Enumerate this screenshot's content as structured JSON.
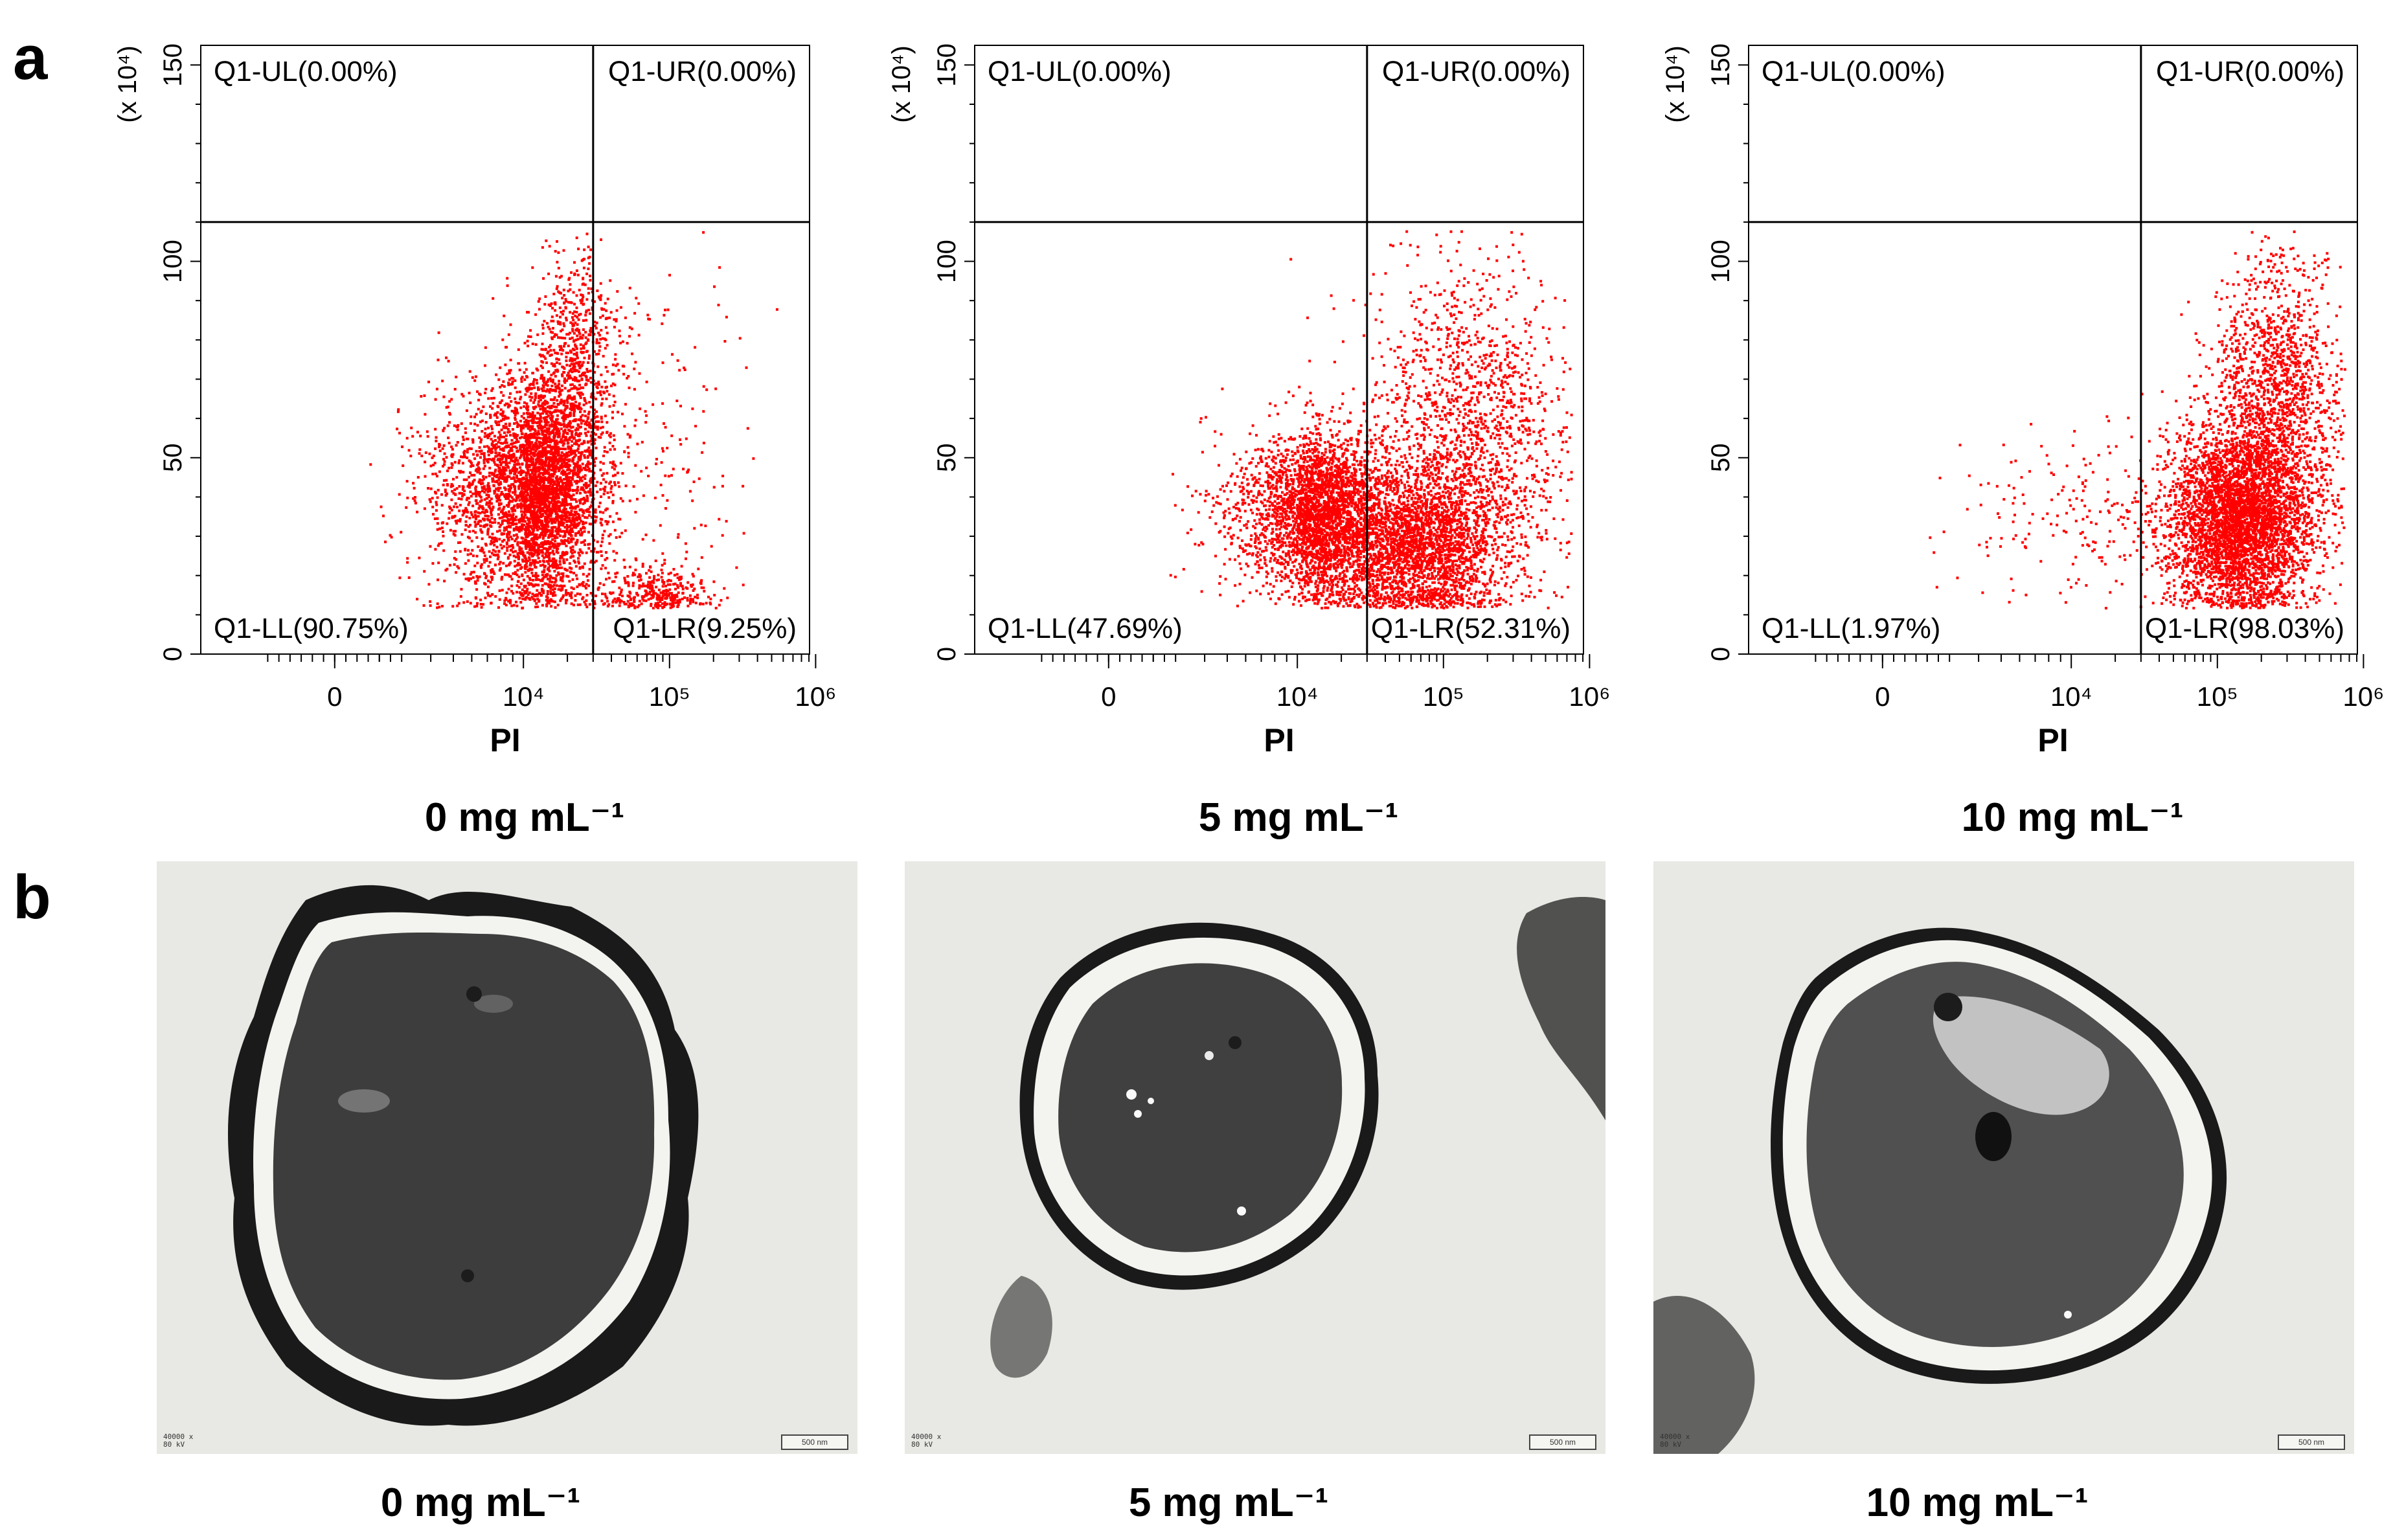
{
  "figure": {
    "panel_a_letter": "a",
    "panel_b_letter": "b",
    "panel_b_conditions": [
      "0 mg mL⁻¹",
      "5 mg mL⁻¹",
      "10 mg mL⁻¹"
    ],
    "tem_scale_label": "500 nm",
    "tem_meta": [
      "40000 x",
      "80 kV"
    ]
  },
  "chart_data": [
    {
      "type": "scatter",
      "title": "0 mg mL⁻¹",
      "xlabel": "PI",
      "ylabel": "",
      "y_multiplier": "(x 10⁴)",
      "x_scale": "biexponential",
      "xticks": [
        "0",
        "10⁴",
        "10⁵",
        "10⁶"
      ],
      "yticks": [
        "0",
        "50",
        "100",
        "150"
      ],
      "ylim": [
        0,
        155
      ],
      "quadrant_x_gate": 30000,
      "quadrant_y_gate": 110,
      "quadrants": [
        {
          "label": "Q1-UL(0.00%)",
          "pos": "upper-left",
          "value": 0.0
        },
        {
          "label": "Q1-UR(0.00%)",
          "pos": "upper-right",
          "value": 0.0
        },
        {
          "label": "Q1-LL(90.75%)",
          "pos": "lower-left",
          "value": 90.75
        },
        {
          "label": "Q1-LR(9.25%)",
          "pos": "lower-right",
          "value": 9.25
        }
      ],
      "point_color": "#ff0000",
      "clusters": [
        {
          "center_x": 12000,
          "center_y": 42,
          "spread_x": 0.22,
          "spread_y": 14,
          "n": 4200
        },
        {
          "center_x": 22000,
          "center_y": 75,
          "spread_x": 0.15,
          "spread_y": 15,
          "n": 700
        },
        {
          "center_x": 80000,
          "center_y": 15,
          "spread_x": 0.2,
          "spread_y": 4,
          "n": 350
        },
        {
          "center_x": 60000,
          "center_y": 50,
          "spread_x": 0.4,
          "spread_y": 25,
          "n": 220
        }
      ]
    },
    {
      "type": "scatter",
      "title": "5 mg mL⁻¹",
      "xlabel": "PI",
      "ylabel": "",
      "y_multiplier": "(x 10⁴)",
      "x_scale": "biexponential",
      "xticks": [
        "0",
        "10⁴",
        "10⁵",
        "10⁶"
      ],
      "yticks": [
        "0",
        "50",
        "100",
        "150"
      ],
      "ylim": [
        0,
        155
      ],
      "quadrant_x_gate": 30000,
      "quadrant_y_gate": 110,
      "quadrants": [
        {
          "label": "Q1-UL(0.00%)",
          "pos": "upper-left",
          "value": 0.0
        },
        {
          "label": "Q1-UR(0.00%)",
          "pos": "upper-right",
          "value": 0.0
        },
        {
          "label": "Q1-LL(47.69%)",
          "pos": "lower-left",
          "value": 47.69
        },
        {
          "label": "Q1-LR(52.31%)",
          "pos": "lower-right",
          "value": 52.31
        }
      ],
      "point_color": "#ff0000",
      "clusters": [
        {
          "center_x": 14000,
          "center_y": 36,
          "spread_x": 0.22,
          "spread_y": 10,
          "n": 3000
        },
        {
          "center_x": 60000,
          "center_y": 28,
          "spread_x": 0.3,
          "spread_y": 10,
          "n": 2600
        },
        {
          "center_x": 150000,
          "center_y": 55,
          "spread_x": 0.35,
          "spread_y": 22,
          "n": 1600
        }
      ]
    },
    {
      "type": "scatter",
      "title": "10 mg mL⁻¹",
      "xlabel": "PI",
      "ylabel": "",
      "y_multiplier": "(x 10⁴)",
      "x_scale": "biexponential",
      "xticks": [
        "0",
        "10⁴",
        "10⁵",
        "10⁶"
      ],
      "yticks": [
        "0",
        "50",
        "100",
        "150"
      ],
      "ylim": [
        0,
        155
      ],
      "quadrant_x_gate": 30000,
      "quadrant_y_gate": 110,
      "quadrants": [
        {
          "label": "Q1-UL(0.00%)",
          "pos": "upper-left",
          "value": 0.0
        },
        {
          "label": "Q1-UR(0.00%)",
          "pos": "upper-right",
          "value": 0.0
        },
        {
          "label": "Q1-LL(1.97%)",
          "pos": "lower-left",
          "value": 1.97
        },
        {
          "label": "Q1-LR(98.03%)",
          "pos": "lower-right",
          "value": 98.03
        }
      ],
      "point_color": "#ff0000",
      "clusters": [
        {
          "center_x": 140000,
          "center_y": 35,
          "spread_x": 0.25,
          "spread_y": 12,
          "n": 4200
        },
        {
          "center_x": 250000,
          "center_y": 65,
          "spread_x": 0.22,
          "spread_y": 18,
          "n": 1400
        },
        {
          "center_x": 12000,
          "center_y": 35,
          "spread_x": 0.3,
          "spread_y": 12,
          "n": 180
        }
      ]
    }
  ]
}
